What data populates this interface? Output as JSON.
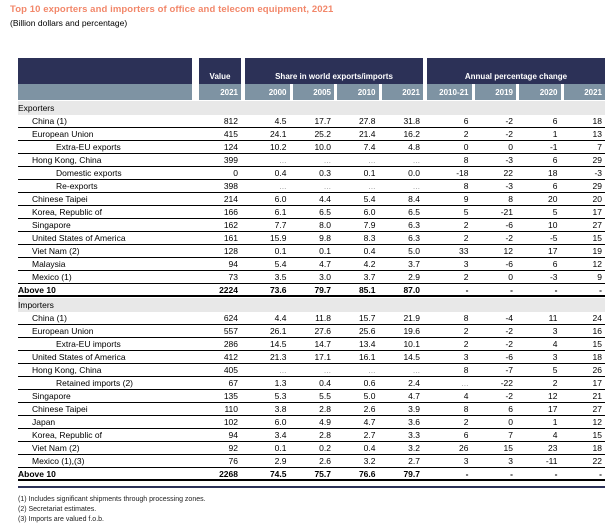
{
  "title": "Top 10 exporters and importers of office and telecom equipment, 2021",
  "subtitle": "(Billion dollars and percentage)",
  "colors": {
    "accent_title": "#f2876a",
    "header_navy": "#2c3157",
    "header_year_bg": "#7e93a3",
    "section_band": "#e8e8e8"
  },
  "table": {
    "header": {
      "value_label": "Value",
      "share_label": "Share in world exports/imports",
      "annual_label": "Annual percentage change",
      "value_years": [
        "2021"
      ],
      "share_years": [
        "2000",
        "2005",
        "2010",
        "2021"
      ],
      "annual_years": [
        "2010-21",
        "2019",
        "2020",
        "2021"
      ]
    },
    "sections": [
      {
        "label": "Exporters",
        "rows": [
          {
            "label": "China (1)",
            "indent": 1,
            "values": [
              "812",
              "4.5",
              "17.7",
              "27.8",
              "31.8",
              "6",
              "-2",
              "6",
              "18"
            ]
          },
          {
            "label": "European Union",
            "indent": 1,
            "values": [
              "415",
              "24.1",
              "25.2",
              "21.4",
              "16.2",
              "2",
              "-2",
              "1",
              "13"
            ]
          },
          {
            "label": "Extra-EU exports",
            "indent": 2,
            "values": [
              "124",
              "10.2",
              "10.0",
              "7.4",
              "4.8",
              "0",
              "0",
              "-1",
              "7"
            ]
          },
          {
            "label": "Hong Kong, China",
            "indent": 1,
            "values": [
              "399",
              "...",
              "...",
              "...",
              "...",
              "8",
              "-3",
              "6",
              "29"
            ]
          },
          {
            "label": "Domestic exports",
            "indent": 2,
            "values": [
              "0",
              "0.4",
              "0.3",
              "0.1",
              "0.0",
              "-18",
              "22",
              "18",
              "-3"
            ]
          },
          {
            "label": "Re-exports",
            "indent": 2,
            "values": [
              "398",
              "...",
              "...",
              "...",
              "...",
              "8",
              "-3",
              "6",
              "29"
            ]
          },
          {
            "label": "Chinese Taipei",
            "indent": 1,
            "values": [
              "214",
              "6.0",
              "4.4",
              "5.4",
              "8.4",
              "9",
              "8",
              "20",
              "20"
            ]
          },
          {
            "label": "Korea, Republic of",
            "indent": 1,
            "values": [
              "166",
              "6.1",
              "6.5",
              "6.0",
              "6.5",
              "5",
              "-21",
              "5",
              "17"
            ]
          },
          {
            "label": "Singapore",
            "indent": 1,
            "values": [
              "162",
              "7.7",
              "8.0",
              "7.9",
              "6.3",
              "2",
              "-6",
              "10",
              "27"
            ]
          },
          {
            "label": "United States of America",
            "indent": 1,
            "values": [
              "161",
              "15.9",
              "9.8",
              "8.3",
              "6.3",
              "2",
              "-2",
              "-5",
              "15"
            ]
          },
          {
            "label": "Viet Nam (2)",
            "indent": 1,
            "values": [
              "128",
              "0.1",
              "0.1",
              "0.4",
              "5.0",
              "33",
              "12",
              "17",
              "19"
            ]
          },
          {
            "label": "Malaysia",
            "indent": 1,
            "values": [
              "94",
              "5.4",
              "4.7",
              "4.2",
              "3.7",
              "3",
              "-6",
              "6",
              "12"
            ]
          },
          {
            "label": "Mexico (1)",
            "indent": 1,
            "values": [
              "73",
              "3.5",
              "3.0",
              "3.7",
              "2.9",
              "2",
              "0",
              "-3",
              "9"
            ]
          }
        ],
        "total": {
          "label": "Above 10",
          "values": [
            "2224",
            "73.6",
            "79.7",
            "85.1",
            "87.0",
            "-",
            "-",
            "-",
            "-"
          ]
        }
      },
      {
        "label": "Importers",
        "rows": [
          {
            "label": "China (1)",
            "indent": 1,
            "values": [
              "624",
              "4.4",
              "11.8",
              "15.7",
              "21.9",
              "8",
              "-4",
              "11",
              "24"
            ]
          },
          {
            "label": "European Union",
            "indent": 1,
            "values": [
              "557",
              "26.1",
              "27.6",
              "25.6",
              "19.6",
              "2",
              "-2",
              "3",
              "16"
            ]
          },
          {
            "label": "Extra-EU imports",
            "indent": 2,
            "values": [
              "286",
              "14.5",
              "14.7",
              "13.4",
              "10.1",
              "2",
              "-2",
              "4",
              "15"
            ]
          },
          {
            "label": "United States of America",
            "indent": 1,
            "values": [
              "412",
              "21.3",
              "17.1",
              "16.1",
              "14.5",
              "3",
              "-6",
              "3",
              "18"
            ]
          },
          {
            "label": "Hong Kong, China",
            "indent": 1,
            "values": [
              "405",
              "...",
              "...",
              "...",
              "...",
              "8",
              "-7",
              "5",
              "26"
            ]
          },
          {
            "label": "Retained imports (2)",
            "indent": 2,
            "values": [
              "67",
              "1.3",
              "0.4",
              "0.6",
              "2.4",
              "...",
              "-22",
              "2",
              "17"
            ]
          },
          {
            "label": "Singapore",
            "indent": 1,
            "values": [
              "135",
              "5.3",
              "5.5",
              "5.0",
              "4.7",
              "4",
              "-2",
              "12",
              "21"
            ]
          },
          {
            "label": "Chinese Taipei",
            "indent": 1,
            "values": [
              "110",
              "3.8",
              "2.8",
              "2.6",
              "3.9",
              "8",
              "6",
              "17",
              "27"
            ]
          },
          {
            "label": "Japan",
            "indent": 1,
            "values": [
              "102",
              "6.0",
              "4.9",
              "4.7",
              "3.6",
              "2",
              "0",
              "1",
              "12"
            ]
          },
          {
            "label": "Korea, Republic of",
            "indent": 1,
            "values": [
              "94",
              "3.4",
              "2.8",
              "2.7",
              "3.3",
              "6",
              "7",
              "4",
              "15"
            ]
          },
          {
            "label": "Viet Nam (2)",
            "indent": 1,
            "values": [
              "92",
              "0.1",
              "0.2",
              "0.4",
              "3.2",
              "26",
              "15",
              "23",
              "18"
            ]
          },
          {
            "label": "Mexico (1),(3)",
            "indent": 1,
            "values": [
              "76",
              "2.9",
              "2.6",
              "3.2",
              "2.7",
              "3",
              "3",
              "-11",
              "22"
            ]
          }
        ],
        "total": {
          "label": "Above 10",
          "values": [
            "2268",
            "74.5",
            "75.7",
            "76.6",
            "79.7",
            "-",
            "-",
            "-",
            "-"
          ]
        }
      }
    ]
  },
  "footnotes": [
    "(1) Includes significant shipments through processing zones.",
    "(2) Secretariat estimates.",
    "(3) Imports are valued f.o.b."
  ]
}
